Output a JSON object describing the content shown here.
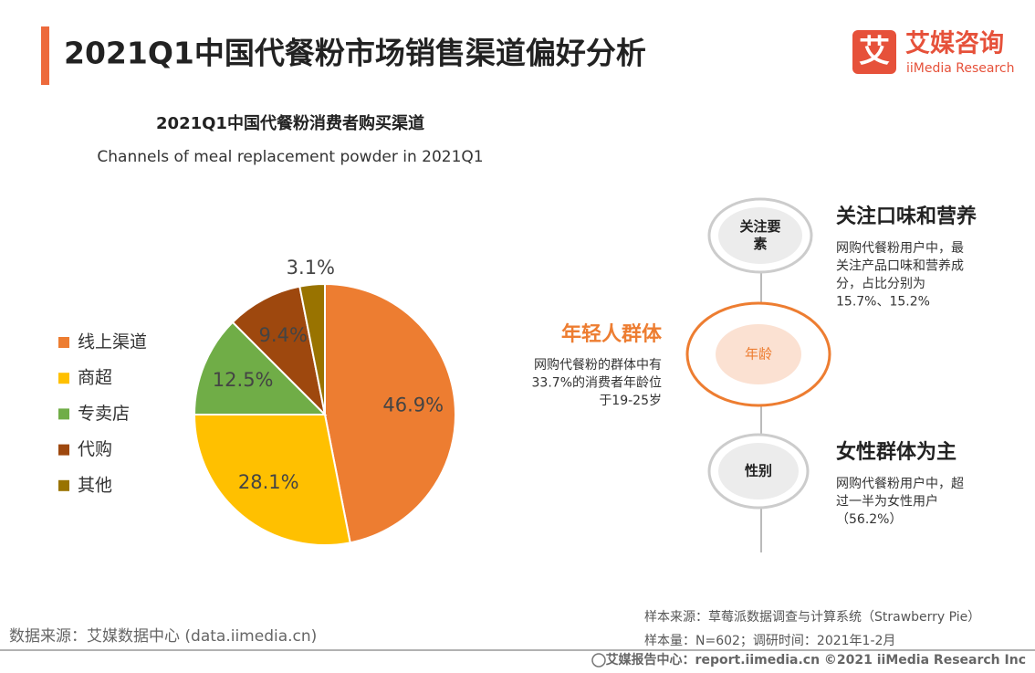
{
  "header": {
    "title": "2021Q1中国代餐粉市场销售渠道偏好分析",
    "logo_mark": "艾",
    "logo_cn": "艾媒咨询",
    "logo_en": "iiMedia Research"
  },
  "chart_data": {
    "type": "pie",
    "title": "2021Q1中国代餐粉消费者购买渠道",
    "subtitle": "Channels of meal replacement powder in 2021Q1",
    "categories": [
      "线上渠道",
      "商超",
      "专卖店",
      "代购",
      "其他"
    ],
    "values": [
      46.9,
      28.1,
      12.5,
      9.4,
      3.1
    ],
    "value_labels": [
      "46.9%",
      "28.1%",
      "12.5%",
      "9.4%",
      "3.1%"
    ],
    "colors": [
      "#ED7D31",
      "#FFC000",
      "#70AD47",
      "#9E480E",
      "#997300"
    ],
    "legend": "left"
  },
  "infographic": {
    "nodes": [
      {
        "label": [
          "关注要",
          "素"
        ],
        "heading": "关注口味和营养",
        "text": [
          "网购代餐粉用户中，最",
          "关注产品口味和营养成",
          "分，占比分别为",
          "15.7%、15.2%"
        ]
      },
      {
        "label": [
          "年龄"
        ],
        "heading": "年轻人群体",
        "text": [
          "网购代餐粉的群体中有",
          "33.7%的消费者年龄位",
          "于19-25岁"
        ]
      },
      {
        "label": [
          "性别"
        ],
        "heading": "女性群体为主",
        "text": [
          "网购代餐粉用户中，超",
          "过一半为女性用户",
          "（56.2%）"
        ]
      }
    ]
  },
  "footer": {
    "source": "数据来源：艾媒数据中心 (data.iimedia.cn)",
    "sample_source": "样本来源：草莓派数据调查与计算系统（Strawberry Pie）",
    "sample_size": "样本量：N=602；调研时间：2021年1-2月",
    "copyright": "艾媒报告中心：report.iimedia.cn  ©2021  iiMedia Research  Inc"
  }
}
